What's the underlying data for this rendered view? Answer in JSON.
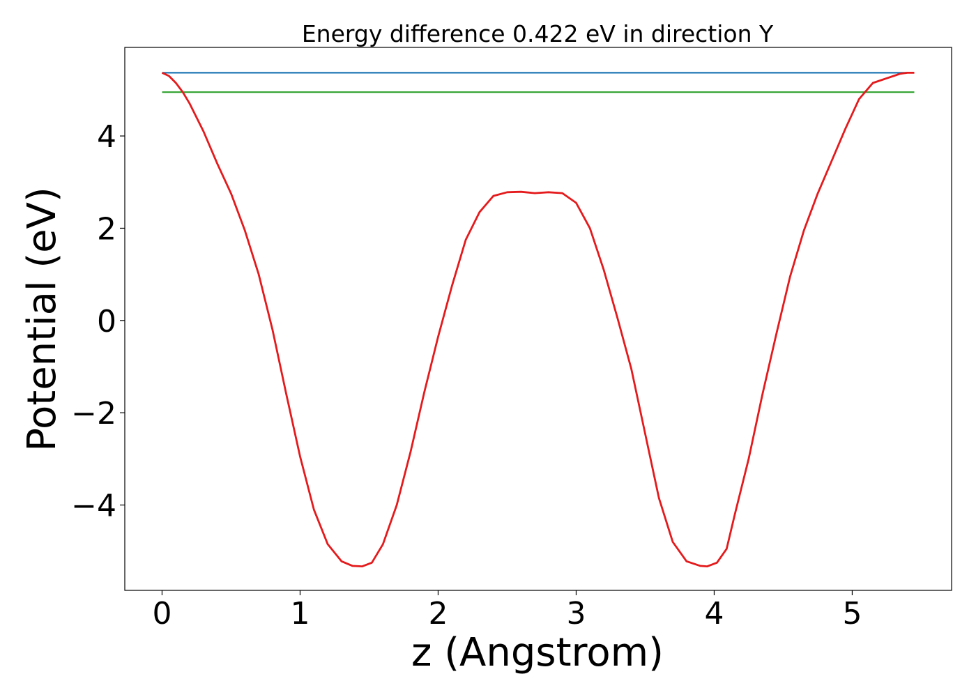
{
  "chart_data": {
    "type": "line",
    "title": "Energy difference 0.422 eV in direction Y",
    "xlabel": "z (Angstrom)",
    "ylabel": "Potential (eV)",
    "xlim": [
      -0.27,
      5.72
    ],
    "ylim": [
      -5.85,
      5.92
    ],
    "x_ticks": [
      0,
      1,
      2,
      3,
      4,
      5
    ],
    "x_tick_labels": [
      "0",
      "1",
      "2",
      "3",
      "4",
      "5"
    ],
    "y_ticks": [
      -4,
      -2,
      0,
      2,
      4
    ],
    "y_tick_labels": [
      "−4",
      "−2",
      "0",
      "2",
      "4"
    ],
    "grid": false,
    "series": [
      {
        "color": "#1f77b4",
        "x": [
          0.0,
          5.45
        ],
        "y": [
          5.37,
          5.37
        ]
      },
      {
        "color": "#2ca02c",
        "x": [
          0.0,
          5.45
        ],
        "y": [
          4.95,
          4.95
        ]
      },
      {
        "color": "#e41a1c",
        "x": [
          0.0,
          0.05,
          0.1,
          0.15,
          0.2,
          0.3,
          0.4,
          0.5,
          0.6,
          0.7,
          0.8,
          0.9,
          1.0,
          1.1,
          1.2,
          1.3,
          1.38,
          1.45,
          1.52,
          1.6,
          1.7,
          1.8,
          1.9,
          2.0,
          2.1,
          2.2,
          2.3,
          2.4,
          2.5,
          2.6,
          2.7,
          2.8,
          2.9,
          3.0,
          3.1,
          3.2,
          3.3,
          3.4,
          3.5,
          3.6,
          3.7,
          3.8,
          3.9,
          3.95,
          4.02,
          4.09,
          4.15,
          4.25,
          4.35,
          4.45,
          4.55,
          4.65,
          4.75,
          4.85,
          4.95,
          5.05,
          5.15,
          5.25,
          5.3,
          5.35,
          5.4,
          5.45
        ],
        "y": [
          5.37,
          5.3,
          5.15,
          4.95,
          4.7,
          4.1,
          3.4,
          2.75,
          1.95,
          1.0,
          -0.2,
          -1.6,
          -2.95,
          -4.1,
          -4.85,
          -5.22,
          -5.32,
          -5.33,
          -5.25,
          -4.85,
          -4.0,
          -2.85,
          -1.55,
          -0.35,
          0.75,
          1.75,
          2.35,
          2.7,
          2.78,
          2.79,
          2.76,
          2.78,
          2.76,
          2.55,
          2.0,
          1.1,
          0.05,
          -1.05,
          -2.45,
          -3.85,
          -4.8,
          -5.22,
          -5.32,
          -5.33,
          -5.25,
          -4.95,
          -4.2,
          -3.0,
          -1.6,
          -0.3,
          0.95,
          1.95,
          2.75,
          3.45,
          4.15,
          4.8,
          5.15,
          5.25,
          5.3,
          5.35,
          5.37,
          5.37
        ]
      }
    ]
  }
}
